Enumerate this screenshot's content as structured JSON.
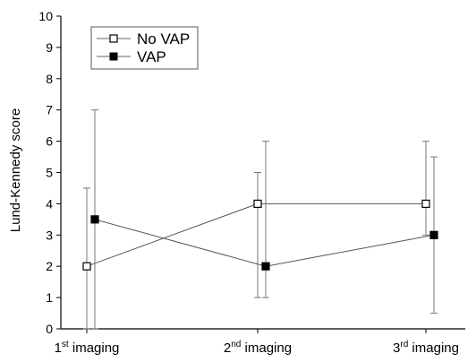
{
  "chart_data": {
    "type": "line",
    "title": "",
    "xlabel": "",
    "ylabel": "Lund-Kennedy score",
    "ylim": [
      0,
      10
    ],
    "yticks": [
      0,
      1,
      2,
      3,
      4,
      5,
      6,
      7,
      8,
      9,
      10
    ],
    "grid": false,
    "legend_position": "top-left",
    "categories": [
      {
        "base": "1",
        "sup": "st",
        "rest": " imaging"
      },
      {
        "base": "2",
        "sup": "nd",
        "rest": " imaging"
      },
      {
        "base": "3",
        "sup": "rd",
        "rest": " imaging"
      }
    ],
    "series": [
      {
        "name": "No VAP",
        "marker": "open-square",
        "color": "#000000",
        "values": [
          2,
          4,
          4
        ],
        "error_low": [
          0,
          1,
          3
        ],
        "error_high": [
          4.5,
          5,
          6
        ]
      },
      {
        "name": "VAP",
        "marker": "filled-square",
        "color": "#000000",
        "values": [
          3.5,
          2,
          3
        ],
        "error_low": [
          0,
          1,
          0.5
        ],
        "error_high": [
          7,
          6,
          5.5
        ]
      }
    ]
  }
}
